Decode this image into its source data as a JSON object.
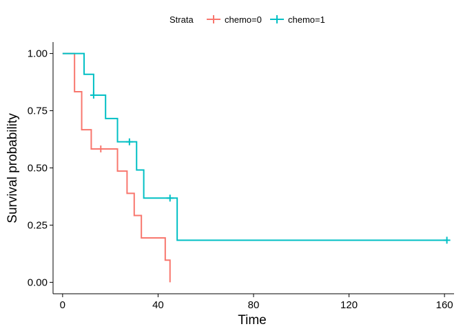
{
  "chart_data": {
    "type": "line",
    "subtype": "kaplan-meier step",
    "xlabel": "Time",
    "ylabel": "Survival probability",
    "xlim": [
      -4,
      164
    ],
    "ylim": [
      -0.05,
      1.05
    ],
    "x_ticks": [
      0,
      40,
      80,
      120,
      160
    ],
    "y_ticks": [
      0.0,
      0.25,
      0.5,
      0.75,
      1.0
    ],
    "y_tick_labels": [
      "0.00",
      "0.25",
      "0.50",
      "0.75",
      "1.00"
    ],
    "grid": false,
    "legend_title": "Strata",
    "legend_position": "top",
    "series": [
      {
        "name": "chemo=0",
        "color": "#F8766D",
        "steps": [
          [
            0,
            1.0
          ],
          [
            5,
            0.833
          ],
          [
            8,
            0.667
          ],
          [
            12,
            0.583
          ],
          [
            23,
            0.486
          ],
          [
            27,
            0.389
          ],
          [
            30,
            0.292
          ],
          [
            33,
            0.194
          ],
          [
            43,
            0.097
          ],
          [
            45,
            0.0
          ]
        ],
        "censored": [
          [
            16,
            0.583
          ]
        ]
      },
      {
        "name": "chemo=1",
        "color": "#00BFC4",
        "steps": [
          [
            0,
            1.0
          ],
          [
            9,
            0.909
          ],
          [
            13,
            0.818
          ],
          [
            18,
            0.716
          ],
          [
            23,
            0.614
          ],
          [
            31,
            0.491
          ],
          [
            34,
            0.368
          ],
          [
            48,
            0.184
          ]
        ],
        "censored": [
          [
            13,
            0.818
          ],
          [
            28,
            0.614
          ],
          [
            45,
            0.368
          ],
          [
            161,
            0.184
          ]
        ]
      }
    ]
  }
}
